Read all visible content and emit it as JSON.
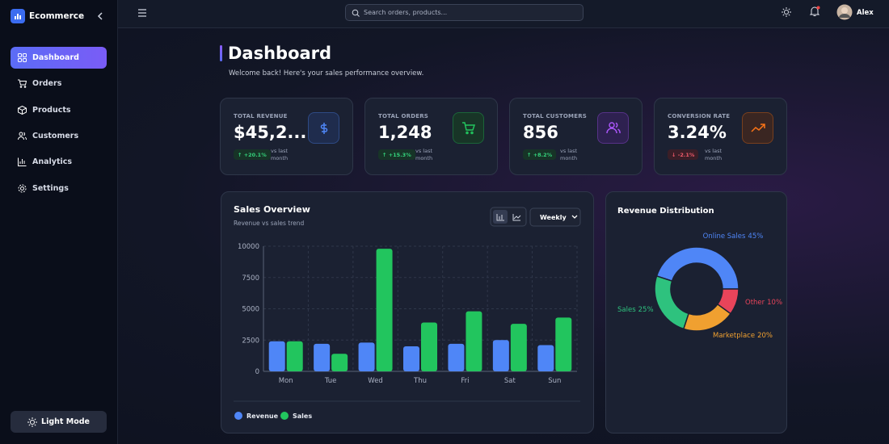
{
  "sidebar": {
    "brand": "Ecommerce",
    "nav": [
      "Dashboard",
      "Orders",
      "Products",
      "Customers",
      "Analytics",
      "Settings"
    ],
    "theme_button": "Light Mode"
  },
  "topbar": {
    "search_placeholder": "Search orders, products...",
    "user": "Alex"
  },
  "header": {
    "title": "Dashboard",
    "subtitle": "Welcome back! Here's your sales performance overview."
  },
  "kpis": [
    {
      "label": "TOTAL REVENUE",
      "value": "$45,2...",
      "change": "↑ +20.1%",
      "note": "vs last month"
    },
    {
      "label": "TOTAL ORDERS",
      "value": "1,248",
      "change": "↑ +15.3%",
      "note": "vs last month"
    },
    {
      "label": "TOTAL CUSTOMERS",
      "value": "856",
      "change": "↑ +8.2%",
      "note": "vs last month"
    },
    {
      "label": "CONVERSION RATE",
      "value": "3.24%",
      "change": "↓ -2.1%",
      "note": "vs last month"
    }
  ],
  "chart_data": [
    {
      "type": "bar",
      "title": "Sales Overview",
      "subtitle": "Revenue vs sales trend",
      "period": "Weekly",
      "categories": [
        "Mon",
        "Tue",
        "Wed",
        "Thu",
        "Fri",
        "Sat",
        "Sun"
      ],
      "series": [
        {
          "name": "Revenue",
          "color": "#4f86f7",
          "values": [
            2400,
            2200,
            2300,
            2000,
            2200,
            2500,
            2100
          ]
        },
        {
          "name": "Sales",
          "color": "#22c55e",
          "values": [
            2400,
            1400,
            9800,
            3900,
            4800,
            3800,
            4300
          ]
        }
      ],
      "ylim": [
        0,
        10000
      ],
      "yticks": [
        0,
        2500,
        5000,
        7500,
        10000
      ],
      "grid": true
    },
    {
      "type": "doughnut",
      "title": "Revenue Distribution",
      "categories": [
        "Online Sales",
        "Sales",
        "Marketplace",
        "Other"
      ],
      "values": [
        45,
        25,
        20,
        10
      ],
      "value_labels": [
        "45%",
        "25%",
        "20%",
        "10%"
      ],
      "colors": [
        "#4f86f7",
        "#2ec27e",
        "#f0a030",
        "#e8445a"
      ]
    }
  ]
}
